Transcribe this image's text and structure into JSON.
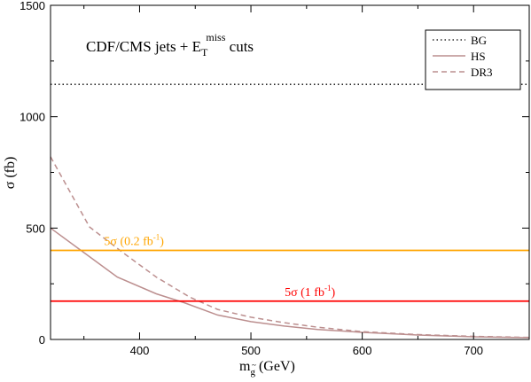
{
  "chart_data": {
    "type": "line",
    "title_main": "CDF/CMS jets + E",
    "title_sub": "T",
    "title_sup": "miss",
    "title_tail": " cuts",
    "xlabel_main": "m",
    "xlabel_sub": "g",
    "xlabel_tilde": "~",
    "xlabel_tail": " (GeV)",
    "ylabel": "σ  (fb)",
    "xlim": [
      320,
      750
    ],
    "ylim": [
      0,
      1500
    ],
    "xticks": [
      400,
      500,
      600,
      700
    ],
    "yticks": [
      0,
      500,
      1000,
      1500
    ],
    "xtick_labels": [
      "400",
      "500",
      "600",
      "700"
    ],
    "ytick_labels": [
      "0",
      "500",
      "1000",
      "1500"
    ],
    "grid": false,
    "legend_position": "top-right",
    "series": [
      {
        "name": "BG",
        "style": "dotted",
        "color": "#000000",
        "x": [
          320,
          750
        ],
        "y": [
          1145,
          1145
        ]
      },
      {
        "name": "HS",
        "style": "solid",
        "color": "#bc8f8f",
        "x": [
          320,
          350,
          380,
          415,
          440,
          470,
          500,
          530,
          560,
          600,
          650,
          700,
          750
        ],
        "y": [
          500,
          390,
          280,
          205,
          165,
          110,
          80,
          60,
          45,
          32,
          20,
          12,
          8
        ]
      },
      {
        "name": "DR3",
        "style": "dashed",
        "color": "#bc8f8f",
        "x": [
          320,
          355,
          385,
          415,
          445,
          470,
          500,
          530,
          560,
          600,
          650,
          700,
          750
        ],
        "y": [
          820,
          505,
          390,
          280,
          190,
          135,
          100,
          75,
          55,
          35,
          22,
          14,
          9
        ]
      }
    ],
    "reference_lines": [
      {
        "label_main": "5σ (0.2 fb",
        "label_sup": "-1",
        "label_tail": ")",
        "color": "#ffa500",
        "y": 400,
        "label_x": 395
      },
      {
        "label_main": "5σ (1 fb",
        "label_sup": "-1",
        "label_tail": ")",
        "color": "#ff0000",
        "y": 172,
        "label_x": 553
      }
    ]
  }
}
